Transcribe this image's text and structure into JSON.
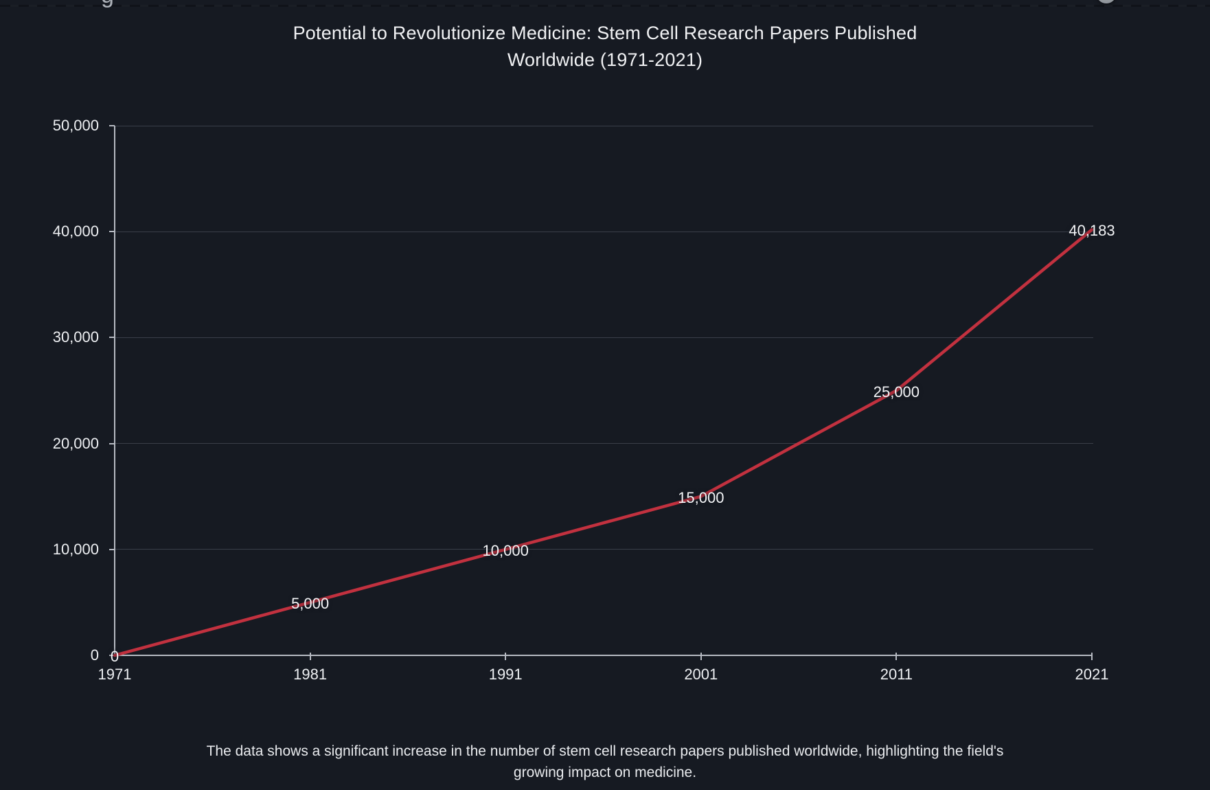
{
  "page": {
    "background_color": "#161a22",
    "cropped_fragments": {
      "partial_glyph": "g"
    }
  },
  "chart_data": {
    "type": "line",
    "title": "Potential to Revolutionize Medicine: Stem Cell Research Papers Published Worldwide (1971-2021)",
    "title_lines": [
      "Potential to Revolutionize Medicine: Stem Cell Research Papers Published",
      "Worldwide (1971-2021)"
    ],
    "x": [
      "1971",
      "1981",
      "1991",
      "2001",
      "2011",
      "2021"
    ],
    "values": [
      0,
      5000,
      10000,
      15000,
      25000,
      40183
    ],
    "data_labels": [
      "0",
      "5,000",
      "10,000",
      "15,000",
      "25,000",
      "40,183"
    ],
    "y_ticks": [
      {
        "value": 0,
        "label": "0"
      },
      {
        "value": 10000,
        "label": "10,000"
      },
      {
        "value": 20000,
        "label": "20,000"
      },
      {
        "value": 30000,
        "label": "30,000"
      },
      {
        "value": 40000,
        "label": "40,000"
      },
      {
        "value": 50000,
        "label": "50,000"
      }
    ],
    "ylim": [
      0,
      50000
    ],
    "xlabel": "",
    "ylabel": "",
    "grid": true,
    "legend": "none",
    "colors": {
      "line": "#c2313f",
      "axis": "#b7bbc3",
      "grid": "#3a3f49",
      "text": "#edeff2",
      "background": "#161a22"
    },
    "caption": "The data shows a significant increase in the number of stem cell research papers published worldwide, highlighting the field's growing impact on medicine.",
    "caption_lines": [
      "The data shows a significant increase in the number of stem cell research papers published worldwide, highlighting the field's",
      "growing impact on medicine."
    ]
  }
}
